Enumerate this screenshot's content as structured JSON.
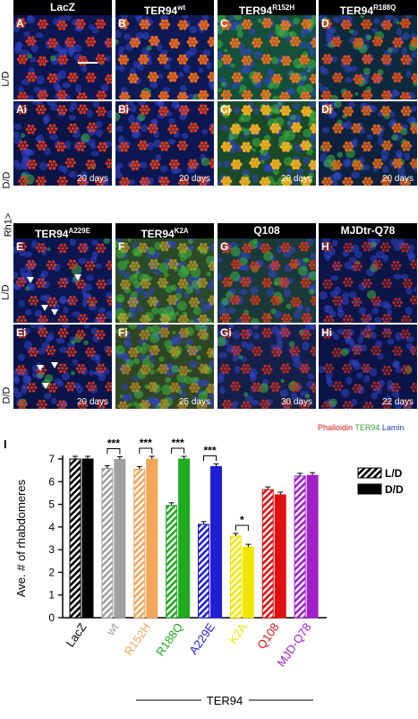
{
  "headers_top": [
    {
      "text": "LacZ",
      "sup": ""
    },
    {
      "text": "TER94",
      "sup": "wt"
    },
    {
      "text": "TER94",
      "sup": "R152H"
    },
    {
      "text": "TER94",
      "sup": "R188Q"
    }
  ],
  "headers_mid": [
    {
      "text": "TER94",
      "sup": "A229E"
    },
    {
      "text": "TER94",
      "sup": "K2A"
    },
    {
      "text": "Q108",
      "sup": ""
    },
    {
      "text": "MJDtr-Q78",
      "sup": ""
    }
  ],
  "panels_top": [
    {
      "label": "A",
      "days": ""
    },
    {
      "label": "B",
      "days": ""
    },
    {
      "label": "C",
      "days": ""
    },
    {
      "label": "D",
      "days": ""
    },
    {
      "label": "Ai",
      "days": "20 days"
    },
    {
      "label": "Bi",
      "days": "20 days"
    },
    {
      "label": "Ci",
      "days": "20 days"
    },
    {
      "label": "Di",
      "days": "20 days"
    }
  ],
  "panels_bottom": [
    {
      "label": "E",
      "days": ""
    },
    {
      "label": "F",
      "days": ""
    },
    {
      "label": "G",
      "days": ""
    },
    {
      "label": "H",
      "days": ""
    },
    {
      "label": "Ei",
      "days": "20 days"
    },
    {
      "label": "Fi",
      "days": "25 days"
    },
    {
      "label": "Gi",
      "days": "30 days"
    },
    {
      "label": "Hi",
      "days": "22 days"
    }
  ],
  "row_labels": {
    "ld": "L/D",
    "dd": "D/D",
    "rh1": "Rh1>"
  },
  "stain_labels": [
    {
      "text": "Phalloidin",
      "color": "#e31a1c"
    },
    {
      "text": "TER94",
      "color": "#33a02c"
    },
    {
      "text": "Lamin",
      "color": "#1f3fbf"
    }
  ],
  "chart_panel_label": "I",
  "chart_data": {
    "type": "bar",
    "ylabel": "Ave. # of rhabdomeres",
    "ylim": [
      0,
      7
    ],
    "yticks": [
      0,
      1,
      2,
      3,
      4,
      5,
      6,
      7
    ],
    "legend": [
      {
        "label": "L/D",
        "pattern": "hatched"
      },
      {
        "label": "D/D",
        "pattern": "solid"
      }
    ],
    "legend_position": "right",
    "group_label": "TER94",
    "categories": [
      {
        "name": "LacZ",
        "color": "#000000",
        "ld": 7.0,
        "dd": 7.0,
        "sig": ""
      },
      {
        "name": "wt",
        "color": "#a0a0a0",
        "ld": 6.58,
        "dd": 6.98,
        "sig": "***"
      },
      {
        "name": "R152H",
        "color": "#f2a65a",
        "ld": 6.55,
        "dd": 7.0,
        "sig": "***"
      },
      {
        "name": "R188Q",
        "color": "#1faa1f",
        "ld": 4.95,
        "dd": 7.0,
        "sig": "***"
      },
      {
        "name": "A229E",
        "color": "#1f1fd6",
        "ld": 4.12,
        "dd": 6.67,
        "sig": "***"
      },
      {
        "name": "K2A",
        "color": "#f2e600",
        "ld": 3.6,
        "dd": 3.12,
        "sig": "*"
      },
      {
        "name": "Q108",
        "color": "#e01010",
        "ld": 5.65,
        "dd": 5.42,
        "sig": ""
      },
      {
        "name": "MJD-Q78",
        "color": "#a020c8",
        "ld": 6.25,
        "dd": 6.28,
        "sig": ""
      }
    ]
  }
}
